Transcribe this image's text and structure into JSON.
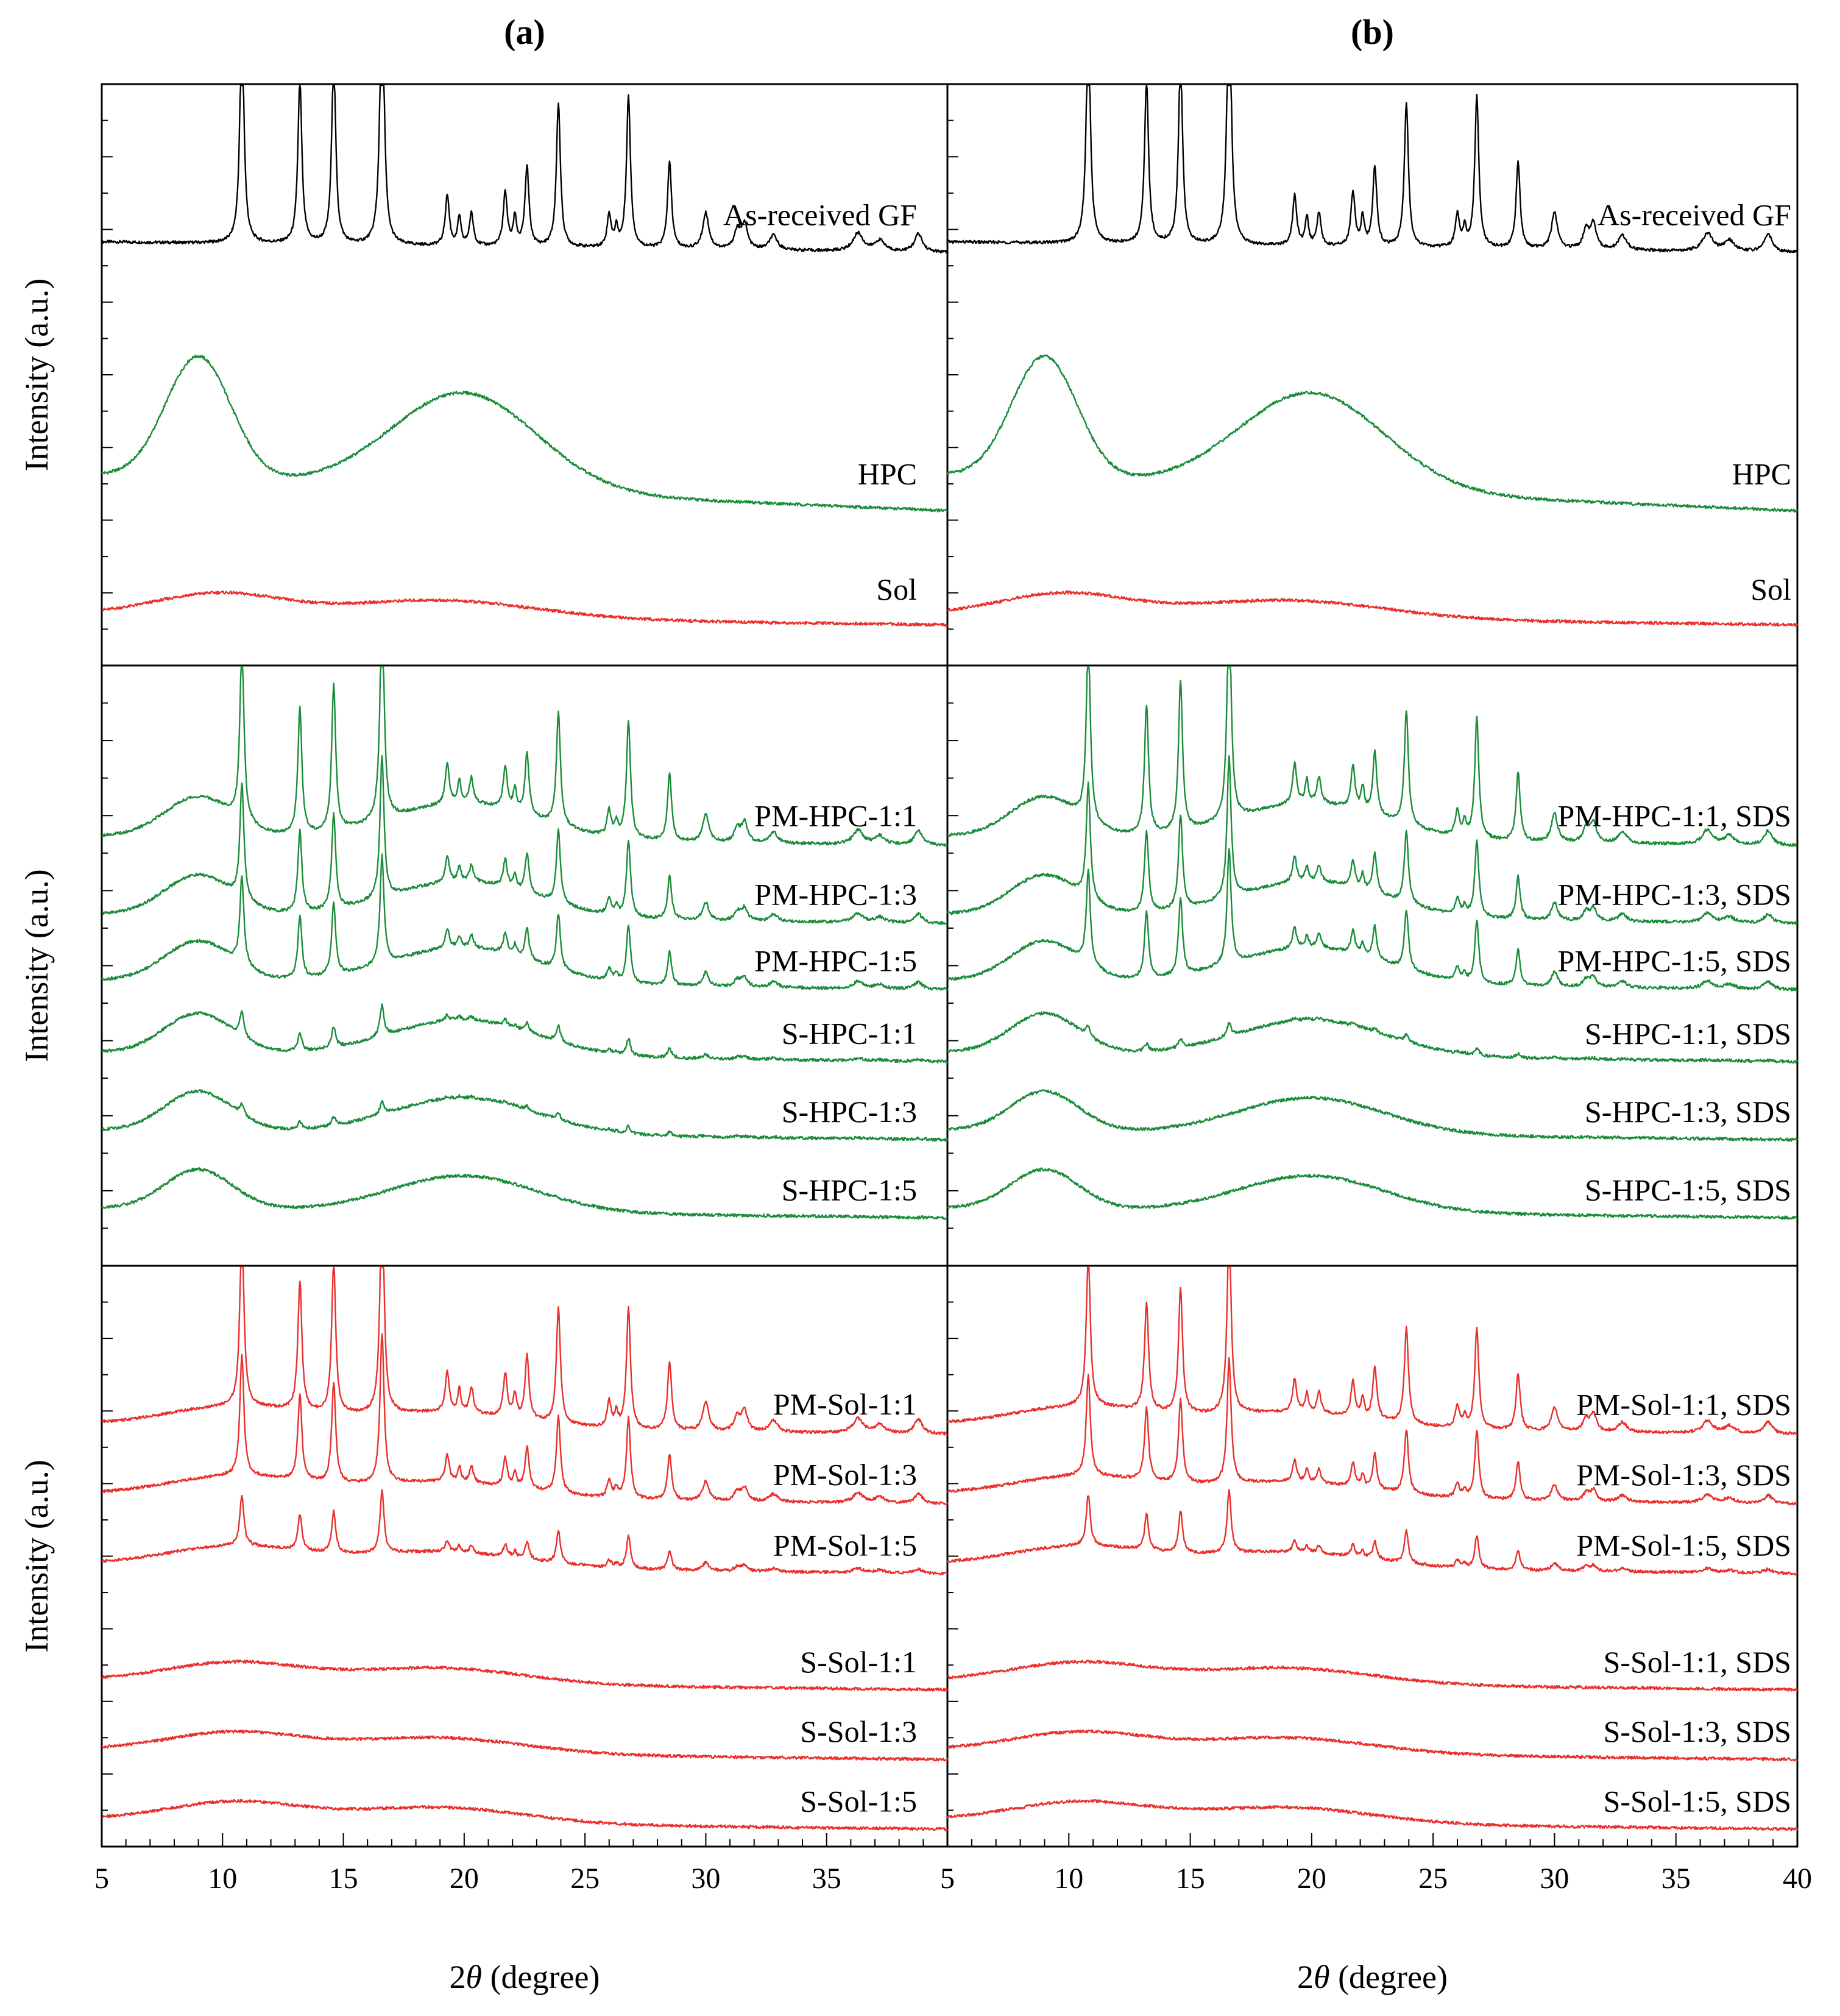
{
  "panel_labels": [
    "(a)",
    "(b)"
  ],
  "x_axis": {
    "label_prefix": "2",
    "label_symbol": "θ",
    "label_suffix": " (degree)",
    "ticks": [
      "5",
      "10",
      "15",
      "20",
      "25",
      "30",
      "35",
      "40"
    ]
  },
  "y_axis_label": "Intensity (a.u.)",
  "colors": {
    "black": "#000000",
    "green": "#1a8c3a",
    "red": "#e8302c"
  },
  "chart_data": [
    {
      "type": "line",
      "panel": "a",
      "row": "top",
      "xlim": [
        5,
        40
      ],
      "ylim": [
        0,
        100
      ],
      "series": [
        {
          "name": "As-received GF",
          "color": "black",
          "base": 71,
          "amp": 1,
          "pattern": "gf"
        },
        {
          "name": "HPC",
          "color": "green",
          "base": 26,
          "amp": 1.0,
          "pattern": "hpc"
        },
        {
          "name": "Sol",
          "color": "red",
          "base": 7,
          "amp": 1.0,
          "pattern": "sol"
        }
      ]
    },
    {
      "type": "line",
      "panel": "b",
      "row": "top",
      "xlim": [
        5,
        40
      ],
      "ylim": [
        0,
        100
      ],
      "series": [
        {
          "name": "As-received GF",
          "color": "black",
          "base": 71,
          "amp": 1,
          "pattern": "gf"
        },
        {
          "name": "HPC",
          "color": "green",
          "base": 26,
          "amp": 1.0,
          "pattern": "hpc"
        },
        {
          "name": "Sol",
          "color": "red",
          "base": 7,
          "amp": 1.0,
          "pattern": "sol"
        }
      ]
    },
    {
      "type": "line",
      "panel": "a",
      "row": "middle",
      "xlim": [
        5,
        40
      ],
      "ylim": [
        0,
        100
      ],
      "series": [
        {
          "name": "PM-HPC-1:1",
          "color": "green",
          "base": 70,
          "amp": 0.85,
          "pattern": "gf"
        },
        {
          "name": "PM-HPC-1:3",
          "color": "green",
          "base": 57,
          "amp": 0.55,
          "pattern": "gf"
        },
        {
          "name": "PM-HPC-1:5",
          "color": "green",
          "base": 46,
          "amp": 0.42,
          "pattern": "gf"
        },
        {
          "name": "S-HPC-1:1",
          "color": "green",
          "base": 34,
          "amp": 0.12,
          "pattern": "gf"
        },
        {
          "name": "S-HPC-1:3",
          "color": "green",
          "base": 21,
          "amp": 0.05,
          "pattern": "gf"
        },
        {
          "name": "S-HPC-1:5",
          "color": "green",
          "base": 8,
          "amp": 0,
          "pattern": "gf"
        }
      ]
    },
    {
      "type": "line",
      "panel": "b",
      "row": "middle",
      "xlim": [
        5,
        40
      ],
      "ylim": [
        0,
        100
      ],
      "series": [
        {
          "name": "PM-HPC-1:1, SDS",
          "color": "green",
          "base": 70,
          "amp": 0.87,
          "pattern": "gf"
        },
        {
          "name": "PM-HPC-1:3, SDS",
          "color": "green",
          "base": 57,
          "amp": 0.55,
          "pattern": "gf"
        },
        {
          "name": "PM-HPC-1:5, SDS",
          "color": "green",
          "base": 46,
          "amp": 0.45,
          "pattern": "gf"
        },
        {
          "name": "S-HPC-1:1, SDS",
          "color": "green",
          "base": 34,
          "amp": 0.05,
          "pattern": "gf"
        },
        {
          "name": "S-HPC-1:3, SDS",
          "color": "green",
          "base": 21,
          "amp": 0,
          "pattern": "gf"
        },
        {
          "name": "S-HPC-1:5, SDS",
          "color": "green",
          "base": 8,
          "amp": 0,
          "pattern": "gf"
        }
      ]
    },
    {
      "type": "line",
      "panel": "a",
      "row": "bottom",
      "xlim": [
        5,
        40
      ],
      "ylim": [
        0,
        100
      ],
      "series": [
        {
          "name": "PM-Sol-1:1",
          "color": "red",
          "base": 71,
          "amp": 0.9,
          "pattern": "gf"
        },
        {
          "name": "PM-Sol-1:3",
          "color": "red",
          "base": 59,
          "amp": 0.6,
          "pattern": "gf"
        },
        {
          "name": "PM-Sol-1:5",
          "color": "red",
          "base": 47,
          "amp": 0.25,
          "pattern": "gf"
        },
        {
          "name": "S-Sol-1:1",
          "color": "red",
          "base": 27,
          "amp": 0,
          "pattern": "gf"
        },
        {
          "name": "S-Sol-1:3",
          "color": "red",
          "base": 15,
          "amp": 0,
          "pattern": "gf"
        },
        {
          "name": "S-Sol-1:5",
          "color": "red",
          "base": 3,
          "amp": 0,
          "pattern": "gf"
        }
      ]
    },
    {
      "type": "line",
      "panel": "b",
      "row": "bottom",
      "xlim": [
        5,
        40
      ],
      "ylim": [
        0,
        100
      ],
      "series": [
        {
          "name": "PM-Sol-1:1, SDS",
          "color": "red",
          "base": 71,
          "amp": 0.75,
          "pattern": "gf"
        },
        {
          "name": "PM-Sol-1:3, SDS",
          "color": "red",
          "base": 59,
          "amp": 0.5,
          "pattern": "gf"
        },
        {
          "name": "PM-Sol-1:5, SDS",
          "color": "red",
          "base": 47,
          "amp": 0.25,
          "pattern": "gf"
        },
        {
          "name": "S-Sol-1:1, SDS",
          "color": "red",
          "base": 27,
          "amp": 0,
          "pattern": "gf"
        },
        {
          "name": "S-Sol-1:3, SDS",
          "color": "red",
          "base": 15,
          "amp": 0,
          "pattern": "gf"
        },
        {
          "name": "S-Sol-1:5, SDS",
          "color": "red",
          "base": 3,
          "amp": 0,
          "pattern": "gf"
        }
      ]
    }
  ]
}
